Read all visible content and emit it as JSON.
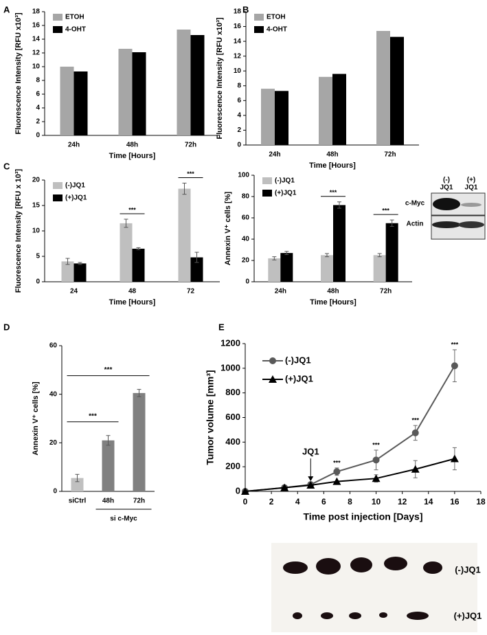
{
  "chart_data": [
    {
      "type": "bar",
      "panel": "A",
      "ylabel": "Fluorescence Intensity [RFU x10³]",
      "xlabel": "Time [Hours]",
      "categories": [
        "24h",
        "48h",
        "72h"
      ],
      "series": [
        {
          "name": "ETOH",
          "color": "#a6a6a6",
          "values": [
            10.0,
            12.6,
            15.4
          ]
        },
        {
          "name": "4-OHT",
          "color": "#000000",
          "values": [
            9.3,
            12.1,
            14.6
          ]
        }
      ],
      "ylim": [
        0,
        18
      ],
      "yticks": [
        0,
        2,
        4,
        6,
        8,
        10,
        12,
        14,
        16,
        18
      ],
      "legend": "upper left"
    },
    {
      "type": "bar",
      "panel": "B",
      "ylabel": "Fluorescence Intensity [RFU x10³]",
      "xlabel": "Time [Hours]",
      "categories": [
        "24h",
        "48h",
        "72h"
      ],
      "series": [
        {
          "name": "ETOH",
          "color": "#a6a6a6",
          "values": [
            7.6,
            9.2,
            15.4
          ]
        },
        {
          "name": "4-OHT",
          "color": "#000000",
          "values": [
            7.3,
            9.6,
            14.6
          ]
        }
      ],
      "ylim": [
        0,
        18
      ],
      "yticks": [
        0,
        2,
        4,
        6,
        8,
        10,
        12,
        14,
        16,
        18
      ],
      "legend": "upper left"
    },
    {
      "type": "bar",
      "panel": "C",
      "ylabel": "Fluorescence Intensity [RFU x 10³]",
      "xlabel": "Time [Hours]",
      "categories": [
        "24",
        "48",
        "72"
      ],
      "series": [
        {
          "name": "(-)JQ1",
          "color": "#bfbfbf",
          "values": [
            4.0,
            11.5,
            18.3
          ],
          "errors": [
            0.6,
            0.8,
            1.1
          ]
        },
        {
          "name": "(+)JQ1",
          "color": "#000000",
          "values": [
            3.6,
            6.5,
            4.8
          ],
          "errors": [
            0.2,
            0.2,
            1.0
          ]
        }
      ],
      "significance": [
        null,
        "***",
        "***"
      ],
      "ylim": [
        0,
        20
      ],
      "yticks": [
        0,
        5,
        10,
        15,
        20
      ],
      "legend": "upper left"
    },
    {
      "type": "bar",
      "ylabel": "Annexin V⁺ cells [%]",
      "xlabel": "Time [Hours]",
      "categories": [
        "24h",
        "48h",
        "72h"
      ],
      "series": [
        {
          "name": "(-)JQ1",
          "color": "#bfbfbf",
          "values": [
            22,
            25,
            25
          ],
          "errors": [
            1.5,
            1.5,
            1.5
          ]
        },
        {
          "name": "(+)JQ1",
          "color": "#000000",
          "values": [
            27,
            72,
            55
          ],
          "errors": [
            1.5,
            3,
            3
          ]
        }
      ],
      "significance": [
        null,
        "***",
        "***"
      ],
      "ylim": [
        0,
        100
      ],
      "yticks": [
        0,
        20,
        40,
        60,
        80,
        100
      ],
      "legend": "upper left"
    },
    {
      "type": "bar",
      "panel": "D",
      "ylabel": "Annexin V⁺ cells [%]",
      "categories": [
        "siCtrl",
        "48h",
        "72h"
      ],
      "series": [
        {
          "colors": [
            "#c0c0c0",
            "#808080",
            "#808080"
          ],
          "values": [
            5.5,
            21,
            40.5
          ],
          "errors": [
            1.5,
            2,
            1.5
          ]
        }
      ],
      "comparisons": [
        {
          "from": "siCtrl",
          "to": "48h",
          "label": "***"
        },
        {
          "from": "siCtrl",
          "to": "72h",
          "label": "***"
        }
      ],
      "group_label": {
        "text": "si c-Myc",
        "from": "48h",
        "to": "72h"
      },
      "ylim": [
        0,
        60
      ],
      "yticks": [
        0,
        20,
        40,
        60
      ]
    },
    {
      "type": "line",
      "panel": "E",
      "ylabel": "Tumor volume [mm³]",
      "xlabel": "Time post injection [Days]",
      "x": [
        0,
        3,
        5,
        7,
        10,
        13,
        16
      ],
      "series": [
        {
          "name": "(-)JQ1",
          "color": "#595959",
          "marker": "circle",
          "values": [
            0,
            30,
            55,
            160,
            255,
            475,
            1020
          ],
          "errors": [
            null,
            null,
            null,
            30,
            80,
            60,
            130
          ],
          "significance": [
            null,
            null,
            null,
            "***",
            "***",
            "***",
            "***"
          ]
        },
        {
          "name": "(+)JQ1",
          "color": "#000000",
          "marker": "triangle",
          "values": [
            0,
            30,
            50,
            80,
            105,
            180,
            265
          ],
          "errors": [
            null,
            null,
            null,
            null,
            30,
            70,
            90
          ]
        }
      ],
      "annotation": {
        "text": "JQ1",
        "x": 5
      },
      "xlim": [
        0,
        18
      ],
      "xticks": [
        0,
        2,
        4,
        6,
        8,
        10,
        12,
        14,
        16,
        18
      ],
      "ylim": [
        0,
        1200
      ],
      "yticks": [
        0,
        200,
        400,
        600,
        800,
        1000,
        1200
      ],
      "legend": "upper left"
    }
  ],
  "blot": {
    "lanes": [
      [
        "(-)",
        "JQ1"
      ],
      [
        "(+)",
        "JQ1"
      ]
    ],
    "rows": [
      "c-Myc",
      "Actin"
    ]
  },
  "photo": {
    "rows": [
      "(-)JQ1",
      "(+)JQ1"
    ]
  }
}
